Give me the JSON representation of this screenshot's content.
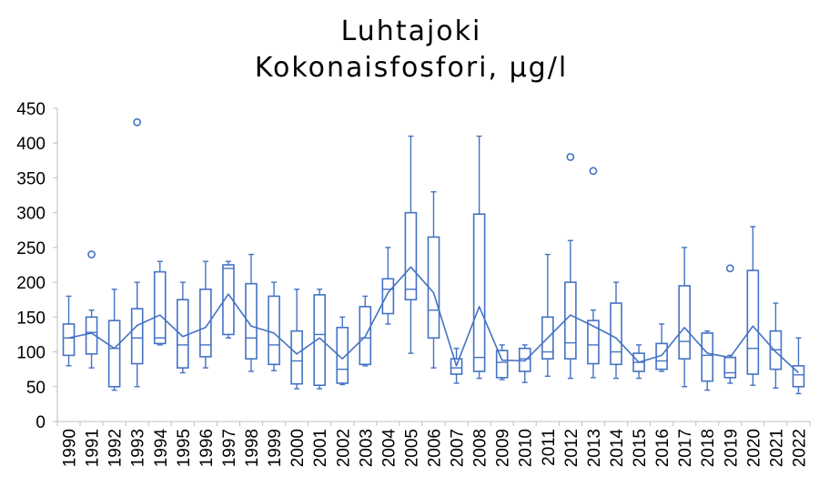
{
  "chart_data": {
    "type": "box",
    "title": "Luhtajoki",
    "subtitle": "Kokonaisfosfori, µg/l",
    "xlabel": "",
    "ylabel": "",
    "ylim": [
      0,
      450
    ],
    "y_ticks": [
      0,
      50,
      100,
      150,
      200,
      250,
      300,
      350,
      400,
      450
    ],
    "y_tick_labels": [
      "0",
      "50",
      "100",
      "150",
      "200",
      "250",
      "300",
      "350",
      "400",
      "450"
    ],
    "grid": false,
    "legend": "none",
    "color": "#4472c4",
    "categories": [
      "1990",
      "1991",
      "1992",
      "1993",
      "1994",
      "1995",
      "1996",
      "1997",
      "1998",
      "1999",
      "2000",
      "2001",
      "2002",
      "2003",
      "2004",
      "2005",
      "2006",
      "2007",
      "2008",
      "2009",
      "2010",
      "2011",
      "2012",
      "2013",
      "2014",
      "2015",
      "2016",
      "2017",
      "2018",
      "2019",
      "2020",
      "2021",
      "2022"
    ],
    "boxes": [
      {
        "min": 80,
        "q1": 95,
        "median": 120,
        "q3": 140,
        "max": 180,
        "outliers": []
      },
      {
        "min": 77,
        "q1": 97,
        "median": 128,
        "q3": 150,
        "max": 160,
        "outliers": [
          240
        ]
      },
      {
        "min": 45,
        "q1": 50,
        "median": 105,
        "q3": 145,
        "max": 190,
        "outliers": []
      },
      {
        "min": 50,
        "q1": 83,
        "median": 120,
        "q3": 162,
        "max": 200,
        "outliers": [
          430
        ]
      },
      {
        "min": 110,
        "q1": 112,
        "median": 120,
        "q3": 215,
        "max": 230,
        "outliers": []
      },
      {
        "min": 70,
        "q1": 77,
        "median": 110,
        "q3": 175,
        "max": 200,
        "outliers": []
      },
      {
        "min": 77,
        "q1": 93,
        "median": 110,
        "q3": 190,
        "max": 230,
        "outliers": []
      },
      {
        "min": 120,
        "q1": 125,
        "median": 220,
        "q3": 225,
        "max": 230,
        "outliers": []
      },
      {
        "min": 72,
        "q1": 90,
        "median": 120,
        "q3": 198,
        "max": 240,
        "outliers": []
      },
      {
        "min": 73,
        "q1": 82,
        "median": 110,
        "q3": 180,
        "max": 200,
        "outliers": []
      },
      {
        "min": 47,
        "q1": 54,
        "median": 87,
        "q3": 130,
        "max": 190,
        "outliers": []
      },
      {
        "min": 47,
        "q1": 52,
        "median": 125,
        "q3": 182,
        "max": 190,
        "outliers": []
      },
      {
        "min": 53,
        "q1": 55,
        "median": 75,
        "q3": 135,
        "max": 150,
        "outliers": []
      },
      {
        "min": 80,
        "q1": 82,
        "median": 120,
        "q3": 165,
        "max": 180,
        "outliers": []
      },
      {
        "min": 140,
        "q1": 155,
        "median": 190,
        "q3": 205,
        "max": 250,
        "outliers": []
      },
      {
        "min": 98,
        "q1": 175,
        "median": 190,
        "q3": 300,
        "max": 410,
        "outliers": []
      },
      {
        "min": 77,
        "q1": 120,
        "median": 160,
        "q3": 265,
        "max": 330,
        "outliers": []
      },
      {
        "min": 55,
        "q1": 68,
        "median": 77,
        "q3": 90,
        "max": 105,
        "outliers": []
      },
      {
        "min": 62,
        "q1": 72,
        "median": 92,
        "q3": 298,
        "max": 410,
        "outliers": []
      },
      {
        "min": 60,
        "q1": 63,
        "median": 85,
        "q3": 102,
        "max": 110,
        "outliers": []
      },
      {
        "min": 56,
        "q1": 72,
        "median": 90,
        "q3": 105,
        "max": 110,
        "outliers": []
      },
      {
        "min": 65,
        "q1": 90,
        "median": 100,
        "q3": 150,
        "max": 240,
        "outliers": []
      },
      {
        "min": 62,
        "q1": 90,
        "median": 113,
        "q3": 200,
        "max": 260,
        "outliers": [
          380
        ]
      },
      {
        "min": 63,
        "q1": 83,
        "median": 110,
        "q3": 145,
        "max": 160,
        "outliers": [
          360
        ]
      },
      {
        "min": 62,
        "q1": 82,
        "median": 100,
        "q3": 170,
        "max": 200,
        "outliers": []
      },
      {
        "min": 62,
        "q1": 72,
        "median": 85,
        "q3": 98,
        "max": 110,
        "outliers": []
      },
      {
        "min": 72,
        "q1": 75,
        "median": 87,
        "q3": 112,
        "max": 140,
        "outliers": []
      },
      {
        "min": 50,
        "q1": 90,
        "median": 115,
        "q3": 195,
        "max": 250,
        "outliers": []
      },
      {
        "min": 45,
        "q1": 58,
        "median": 95,
        "q3": 127,
        "max": 130,
        "outliers": []
      },
      {
        "min": 55,
        "q1": 63,
        "median": 70,
        "q3": 92,
        "max": 95,
        "outliers": [
          220
        ]
      },
      {
        "min": 52,
        "q1": 68,
        "median": 105,
        "q3": 217,
        "max": 280,
        "outliers": []
      },
      {
        "min": 48,
        "q1": 75,
        "median": 103,
        "q3": 130,
        "max": 170,
        "outliers": []
      },
      {
        "min": 40,
        "q1": 50,
        "median": 67,
        "q3": 80,
        "max": 120,
        "outliers": []
      }
    ],
    "mean_line": [
      120,
      127,
      105,
      138,
      153,
      122,
      135,
      183,
      137,
      127,
      97,
      120,
      90,
      122,
      185,
      222,
      185,
      80,
      165,
      88,
      87,
      120,
      153,
      137,
      120,
      85,
      95,
      135,
      98,
      92,
      137,
      100,
      70
    ]
  }
}
